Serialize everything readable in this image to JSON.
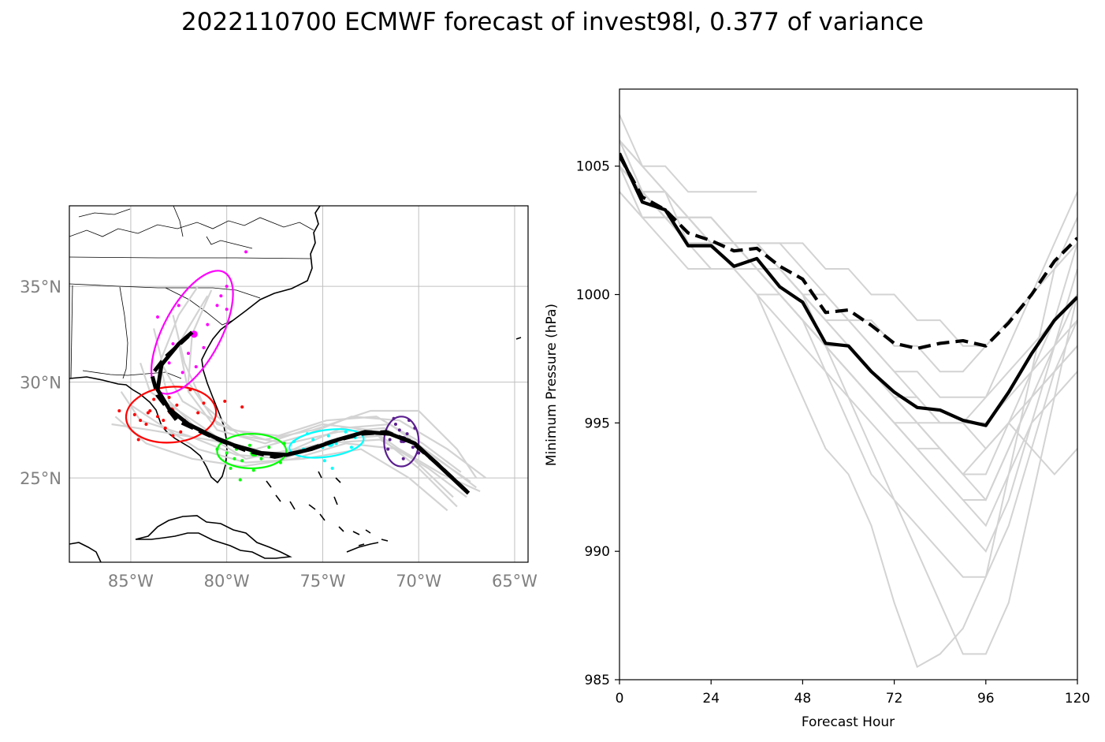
{
  "figure": {
    "title": "2022110700 ECMWF forecast of invest98l, 0.377 of variance"
  },
  "colors": {
    "ensemble": "#d3d3d3",
    "mean": "#000000",
    "cluster_0": "#ff0000",
    "cluster_1": "#ff00ff",
    "cluster_2": "#00ff00",
    "cluster_3": "#00ffff",
    "cluster_4": "#5b1f8f",
    "map_labels": "#808080"
  },
  "map": {
    "lon_ticks": [
      -85,
      -80,
      -75,
      -70,
      -65
    ],
    "lon_labels": [
      "85°W",
      "80°W",
      "75°W",
      "70°W",
      "65°W"
    ],
    "lat_ticks": [
      25,
      30,
      35
    ],
    "lat_labels": [
      "25°N",
      "30°N",
      "35°N"
    ],
    "lon_range": [
      -88.2,
      -64.3
    ],
    "lat_range": [
      20.6,
      39.2
    ],
    "mean_track_solid": [
      [
        -67.4,
        24.2
      ],
      [
        -69.0,
        25.7
      ],
      [
        -70.2,
        26.8
      ],
      [
        -71.5,
        27.3
      ],
      [
        -72.8,
        27.4
      ],
      [
        -74.2,
        27.0
      ],
      [
        -75.6,
        26.5
      ],
      [
        -76.9,
        26.2
      ],
      [
        -78.2,
        26.3
      ],
      [
        -79.6,
        26.7
      ],
      [
        -80.6,
        27.1
      ],
      [
        -82.0,
        27.8
      ],
      [
        -83.0,
        28.6
      ],
      [
        -83.6,
        29.6
      ],
      [
        -83.4,
        30.9
      ],
      [
        -82.5,
        32.0
      ],
      [
        -81.8,
        32.6
      ]
    ],
    "mean_track_dashed": [
      [
        -67.5,
        24.3
      ],
      [
        -69.1,
        25.8
      ],
      [
        -70.4,
        26.9
      ],
      [
        -71.7,
        27.4
      ],
      [
        -73.0,
        27.3
      ],
      [
        -74.5,
        26.9
      ],
      [
        -76.0,
        26.4
      ],
      [
        -77.5,
        26.1
      ],
      [
        -78.9,
        26.4
      ],
      [
        -80.2,
        26.9
      ],
      [
        -81.3,
        27.4
      ],
      [
        -82.6,
        28.0
      ],
      [
        -83.6,
        29.3
      ],
      [
        -83.9,
        30.4
      ],
      [
        -83.2,
        31.3
      ],
      [
        -82.0,
        32.4
      ]
    ],
    "ensemble_tracks": [
      [
        [
          -67.0,
          24.5
        ],
        [
          -69.0,
          26.0
        ],
        [
          -71.5,
          27.8
        ],
        [
          -74.0,
          27.6
        ],
        [
          -76.5,
          26.5
        ],
        [
          -79.0,
          26.0
        ],
        [
          -81.5,
          27.5
        ],
        [
          -83.0,
          29.0
        ],
        [
          -83.5,
          31.0
        ],
        [
          -82.5,
          33.5
        ],
        [
          -81.5,
          35.0
        ]
      ],
      [
        [
          -67.5,
          24.0
        ],
        [
          -69.5,
          25.5
        ],
        [
          -72.0,
          27.0
        ],
        [
          -75.0,
          26.8
        ],
        [
          -77.5,
          26.2
        ],
        [
          -80.0,
          26.8
        ],
        [
          -82.5,
          28.5
        ],
        [
          -84.0,
          29.5
        ],
        [
          -84.5,
          31.0
        ]
      ],
      [
        [
          -68.0,
          23.5
        ],
        [
          -70.0,
          25.5
        ],
        [
          -72.5,
          27.5
        ],
        [
          -75.0,
          27.8
        ],
        [
          -78.0,
          26.8
        ],
        [
          -80.5,
          27.5
        ],
        [
          -82.0,
          29.5
        ],
        [
          -82.5,
          32.0
        ],
        [
          -81.0,
          34.5
        ]
      ],
      [
        [
          -66.5,
          25.0
        ],
        [
          -68.5,
          26.5
        ],
        [
          -71.0,
          28.0
        ],
        [
          -73.5,
          28.2
        ],
        [
          -76.0,
          27.2
        ],
        [
          -78.5,
          26.5
        ],
        [
          -81.0,
          27.0
        ],
        [
          -84.0,
          27.5
        ],
        [
          -86.0,
          27.8
        ]
      ],
      [
        [
          -68.5,
          23.3
        ],
        [
          -70.5,
          25.0
        ],
        [
          -73.0,
          26.5
        ],
        [
          -76.0,
          26.0
        ],
        [
          -79.0,
          25.8
        ],
        [
          -81.5,
          26.5
        ],
        [
          -83.5,
          27.8
        ],
        [
          -85.0,
          28.8
        ]
      ],
      [
        [
          -67.0,
          25.0
        ],
        [
          -68.0,
          26.5
        ],
        [
          -70.0,
          28.5
        ],
        [
          -72.5,
          28.5
        ],
        [
          -75.5,
          27.5
        ],
        [
          -78.0,
          27.0
        ],
        [
          -80.5,
          27.8
        ],
        [
          -82.0,
          30.0
        ],
        [
          -81.8,
          32.5
        ],
        [
          -80.8,
          34.8
        ]
      ],
      [
        [
          -68.2,
          24.0
        ],
        [
          -70.3,
          26.0
        ],
        [
          -72.0,
          27.2
        ],
        [
          -74.5,
          27.0
        ],
        [
          -77.0,
          26.0
        ],
        [
          -79.5,
          26.2
        ],
        [
          -82.0,
          27.2
        ],
        [
          -84.5,
          28.0
        ],
        [
          -85.5,
          29.5
        ]
      ],
      [
        [
          -67.3,
          24.8
        ],
        [
          -69.5,
          26.3
        ],
        [
          -71.8,
          27.6
        ],
        [
          -74.2,
          27.4
        ],
        [
          -76.8,
          26.8
        ],
        [
          -79.3,
          27.2
        ],
        [
          -81.2,
          28.8
        ],
        [
          -82.2,
          31.0
        ],
        [
          -82.8,
          33.5
        ]
      ],
      [
        [
          -66.8,
          24.3
        ],
        [
          -68.8,
          25.2
        ],
        [
          -71.0,
          26.5
        ],
        [
          -73.8,
          26.8
        ],
        [
          -76.5,
          26.0
        ],
        [
          -79.2,
          25.6
        ],
        [
          -81.8,
          26.0
        ],
        [
          -84.2,
          26.8
        ],
        [
          -85.8,
          28.2
        ]
      ],
      [
        [
          -67.8,
          25.3
        ],
        [
          -69.8,
          26.8
        ],
        [
          -72.2,
          28.2
        ],
        [
          -74.8,
          28.0
        ],
        [
          -77.3,
          27.2
        ],
        [
          -79.8,
          27.5
        ],
        [
          -82.3,
          29.0
        ],
        [
          -83.3,
          30.8
        ],
        [
          -83.8,
          32.8
        ]
      ]
    ],
    "ellipses": [
      {
        "cx": -82.9,
        "cy": 28.3,
        "rx": 2.35,
        "ry": 1.45,
        "angle": -5,
        "color_key": "cluster_0"
      },
      {
        "cx": -81.8,
        "cy": 32.6,
        "rx": 1.5,
        "ry": 3.55,
        "angle": 28,
        "color_key": "cluster_1"
      },
      {
        "cx": -78.7,
        "cy": 26.4,
        "rx": 1.8,
        "ry": 0.9,
        "angle": 0,
        "color_key": "cluster_2"
      },
      {
        "cx": -74.8,
        "cy": 26.8,
        "rx": 1.95,
        "ry": 0.7,
        "angle": -8,
        "color_key": "cluster_3"
      },
      {
        "cx": -70.9,
        "cy": 26.9,
        "rx": 0.9,
        "ry": 1.3,
        "angle": 0,
        "color_key": "cluster_4"
      }
    ],
    "clusters": [
      {
        "color_key": "cluster_0",
        "center": [
          -82.9,
          28.5
        ],
        "points": [
          [
            -84.8,
            28.3
          ],
          [
            -84.5,
            28.0
          ],
          [
            -84.2,
            27.8
          ],
          [
            -84.0,
            28.5
          ],
          [
            -83.6,
            28.2
          ],
          [
            -83.2,
            27.6
          ],
          [
            -83.0,
            29.2
          ],
          [
            -82.6,
            28.8
          ],
          [
            -82.2,
            28.0
          ],
          [
            -81.8,
            27.7
          ],
          [
            -81.5,
            28.4
          ],
          [
            -81.2,
            28.9
          ],
          [
            -83.8,
            29.1
          ],
          [
            -84.6,
            27.0
          ],
          [
            -82.8,
            27.2
          ],
          [
            -81.9,
            29.6
          ],
          [
            -83.3,
            28.0
          ],
          [
            -80.1,
            29.0
          ],
          [
            -79.2,
            28.7
          ],
          [
            -85.6,
            28.5
          ],
          [
            -84.1,
            28.4
          ],
          [
            -82.4,
            27.4
          ]
        ]
      },
      {
        "color_key": "cluster_1",
        "center": [
          -81.7,
          32.5
        ],
        "points": [
          [
            -83.6,
            33.4
          ],
          [
            -83.0,
            31.0
          ],
          [
            -82.5,
            34.0
          ],
          [
            -82.0,
            31.5
          ],
          [
            -81.8,
            32.5
          ],
          [
            -81.0,
            33.0
          ],
          [
            -80.3,
            34.5
          ],
          [
            -80.0,
            33.8
          ],
          [
            -79.0,
            36.8
          ],
          [
            -82.3,
            30.5
          ],
          [
            -81.2,
            31.8
          ],
          [
            -80.5,
            34.0
          ],
          [
            -82.8,
            32.0
          ],
          [
            -80.0,
            35.0
          ],
          [
            -81.6,
            30.8
          ]
        ]
      },
      {
        "color_key": "cluster_2",
        "center": [
          -78.6,
          26.3
        ],
        "points": [
          [
            -80.0,
            26.3
          ],
          [
            -79.6,
            26.0
          ],
          [
            -79.5,
            26.5
          ],
          [
            -79.2,
            25.9
          ],
          [
            -78.8,
            26.7
          ],
          [
            -78.5,
            26.2
          ],
          [
            -78.2,
            26.0
          ],
          [
            -77.8,
            26.6
          ],
          [
            -77.5,
            26.1
          ],
          [
            -77.2,
            25.8
          ],
          [
            -79.8,
            25.5
          ],
          [
            -77.0,
            26.8
          ],
          [
            -78.6,
            25.4
          ],
          [
            -79.3,
            24.9
          ],
          [
            -80.5,
            26.5
          ]
        ]
      },
      {
        "color_key": "cluster_3",
        "center": [
          -74.6,
          26.8
        ],
        "points": [
          [
            -76.5,
            26.9
          ],
          [
            -76.0,
            26.5
          ],
          [
            -75.5,
            27.0
          ],
          [
            -75.0,
            26.6
          ],
          [
            -74.7,
            27.2
          ],
          [
            -74.3,
            26.8
          ],
          [
            -73.8,
            27.4
          ],
          [
            -73.3,
            27.1
          ],
          [
            -72.8,
            27.4
          ],
          [
            -75.8,
            27.3
          ],
          [
            -74.9,
            25.9
          ],
          [
            -74.5,
            25.5
          ],
          [
            -73.5,
            26.6
          ]
        ]
      },
      {
        "color_key": "cluster_4",
        "center": [
          -70.8,
          27.0
        ],
        "points": [
          [
            -71.8,
            27.4
          ],
          [
            -71.5,
            27.0
          ],
          [
            -71.2,
            27.8
          ],
          [
            -70.9,
            26.9
          ],
          [
            -70.6,
            27.3
          ],
          [
            -70.3,
            26.6
          ],
          [
            -70.0,
            26.3
          ],
          [
            -71.3,
            28.1
          ],
          [
            -70.5,
            28.0
          ],
          [
            -71.6,
            26.5
          ],
          [
            -70.8,
            26.0
          ],
          [
            -70.2,
            27.6
          ],
          [
            -71.0,
            27.5
          ]
        ]
      }
    ]
  },
  "chart_data": {
    "type": "line",
    "title": "",
    "xlabel": "Forecast Hour",
    "ylabel": "Minimum Pressure (hPa)",
    "xlim": [
      0,
      120
    ],
    "ylim": [
      985,
      1008
    ],
    "xticks": [
      0,
      24,
      48,
      72,
      96,
      120
    ],
    "yticks": [
      985,
      990,
      995,
      1000,
      1005
    ],
    "x": [
      0,
      6,
      12,
      18,
      24,
      30,
      36,
      42,
      48,
      54,
      60,
      66,
      72,
      78,
      84,
      90,
      96,
      102,
      108,
      114,
      120
    ],
    "series": [
      {
        "style": "solid",
        "color_key": "mean",
        "values": [
          1005.5,
          1003.6,
          1003.3,
          1001.9,
          1001.9,
          1001.1,
          1001.4,
          1000.3,
          999.7,
          998.1,
          998.0,
          997.0,
          996.2,
          995.6,
          995.5,
          995.1,
          994.9,
          996.2,
          997.7,
          999.0,
          999.9
        ]
      },
      {
        "style": "dashed",
        "color_key": "mean",
        "values": [
          1005.4,
          1003.8,
          1003.3,
          1002.4,
          1002.1,
          1001.7,
          1001.8,
          1001.1,
          1000.6,
          999.3,
          999.4,
          998.8,
          998.1,
          997.9,
          998.1,
          998.2,
          998.0,
          998.9,
          1000.0,
          1001.3,
          1002.2
        ]
      }
    ],
    "ensemble": [
      [
        1007,
        1005,
        1004,
        1002,
        1002,
        1001,
        1001,
        1000,
        999,
        998,
        997,
        996,
        995,
        994,
        993,
        992,
        992,
        994,
        996,
        998,
        1001
      ],
      [
        1006,
        1004,
        1003,
        1003,
        1002,
        1002,
        1002,
        1002,
        1001,
        1000,
        999,
        998,
        997,
        996,
        995,
        995,
        996,
        998,
        1000,
        1002,
        1004
      ],
      [
        1005,
        1004,
        1004,
        1003,
        1003,
        1002,
        1002,
        1001,
        1000,
        998,
        996,
        994,
        992,
        990,
        988,
        986,
        986,
        988,
        992,
        996,
        1000
      ],
      [
        1006,
        1005,
        1005,
        1004,
        1004,
        1004,
        1004
      ],
      [
        1005,
        1004,
        1003,
        1002,
        1002,
        1001,
        1000,
        998,
        996,
        994,
        993,
        991,
        988,
        985.5,
        986,
        987,
        989,
        993,
        997,
        1001,
        1003
      ],
      [
        1004,
        1003,
        1003,
        1002,
        1001,
        1001,
        1001,
        1000,
        999,
        998,
        997,
        996,
        995,
        995,
        994,
        993,
        992,
        994,
        996,
        997,
        998
      ],
      [
        1006,
        1004,
        1003,
        1003,
        1003,
        1002,
        1002,
        1001,
        1000,
        999,
        999,
        998,
        997,
        997,
        996,
        996,
        996,
        997,
        998,
        999,
        1000
      ],
      [
        1005,
        1004,
        1003,
        1002,
        1002,
        1001,
        1001,
        1000,
        999,
        998,
        997,
        996,
        995,
        994,
        994,
        993,
        993,
        995,
        997,
        999,
        1002
      ],
      [
        1005,
        1003,
        1002,
        1001,
        1001,
        1001,
        1000,
        999,
        998,
        997,
        996,
        995,
        994,
        993,
        992,
        991,
        990,
        992,
        995,
        998,
        1000
      ],
      [
        1004,
        1003,
        1003,
        1003,
        1002,
        1002,
        1002,
        1002,
        1002,
        1001,
        1001,
        1000,
        1000,
        999,
        999,
        998,
        998,
        999,
        1000,
        1001,
        1002
      ],
      [
        1006,
        1005,
        1004,
        1003,
        1002,
        1002,
        1001,
        1000,
        999,
        997,
        995,
        993,
        992,
        991,
        990,
        989,
        989,
        991,
        994,
        997,
        999
      ],
      [
        1005,
        1004,
        1004,
        1003,
        1003,
        1002,
        1002,
        1001,
        1000,
        999,
        998,
        997,
        996,
        996,
        995,
        995,
        995,
        996,
        997,
        998,
        999
      ],
      [
        1005,
        1004,
        1003,
        1002,
        1001,
        1001,
        1000,
        1000,
        999,
        998,
        998,
        997,
        996,
        995,
        994,
        993,
        994,
        995,
        996,
        997,
        998
      ],
      [
        1006,
        1004,
        1004,
        1003,
        1002,
        1002,
        1001,
        1001,
        1000,
        1000,
        999,
        999,
        998,
        998,
        997,
        997,
        998,
        999,
        1000,
        1001,
        1002
      ],
      [
        1005,
        1003,
        1003,
        1002,
        1002,
        1001,
        1001,
        1000,
        999,
        998,
        997,
        996,
        995,
        994,
        993,
        992,
        991,
        993,
        995,
        996,
        997
      ],
      [
        1005,
        1004,
        1003,
        1003,
        1002,
        1002,
        1001,
        1001,
        1000,
        999,
        998,
        997,
        996,
        995,
        995,
        995,
        994,
        995,
        994,
        993,
        994
      ]
    ]
  }
}
